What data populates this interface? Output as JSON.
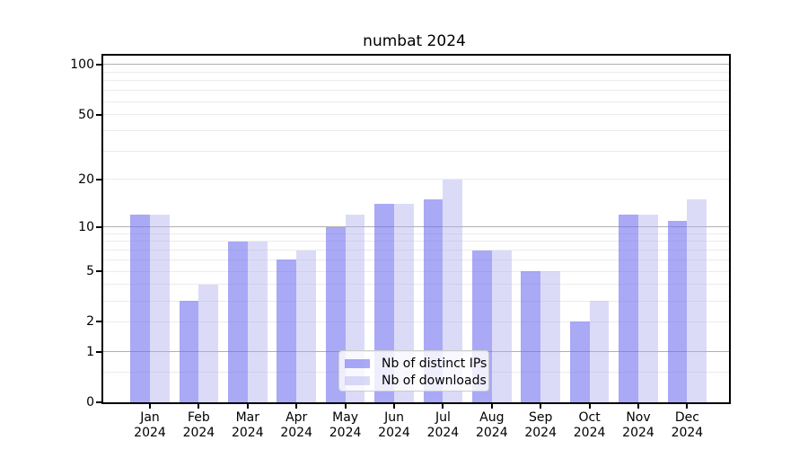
{
  "title": "numbat 2024",
  "chart_data": {
    "type": "bar",
    "title": "numbat 2024",
    "xlabel": "",
    "ylabel": "",
    "categories": [
      "Jan 2024",
      "Feb 2024",
      "Mar 2024",
      "Apr 2024",
      "May 2024",
      "Jun 2024",
      "Jul 2024",
      "Aug 2024",
      "Sep 2024",
      "Oct 2024",
      "Nov 2024",
      "Dec 2024"
    ],
    "series": [
      {
        "name": "Nb of distinct IPs",
        "color": "rgba(112,112,240,0.6)",
        "values": [
          12,
          3,
          8,
          6,
          10,
          14,
          15,
          7,
          5,
          2,
          12,
          11
        ]
      },
      {
        "name": "Nb of downloads",
        "color": "rgba(176,176,240,0.45)",
        "values": [
          12,
          4,
          8,
          7,
          12,
          14,
          20,
          7,
          5,
          3,
          12,
          15
        ]
      }
    ],
    "yscale": "log10(1+v)",
    "ylim": [
      0,
      113
    ],
    "ytick_values": [
      0,
      1,
      2,
      5,
      10,
      20,
      50,
      100
    ],
    "ytick_labels": [
      "0",
      "1",
      "2",
      "5",
      "10",
      "20",
      "50",
      "100"
    ],
    "major_gridline_values": [
      1,
      10,
      100
    ],
    "minor_gridline_values": [
      0.5,
      2,
      3,
      4,
      5,
      6,
      7,
      8,
      9,
      20,
      30,
      40,
      50,
      60,
      70,
      80,
      90
    ],
    "grid": true,
    "legend_position": "lower center",
    "colors": {
      "spine": "#000000",
      "major_grid": "#b0b0b0",
      "minor_grid": "#ebebeb",
      "legend_border": "#cccccc"
    }
  }
}
